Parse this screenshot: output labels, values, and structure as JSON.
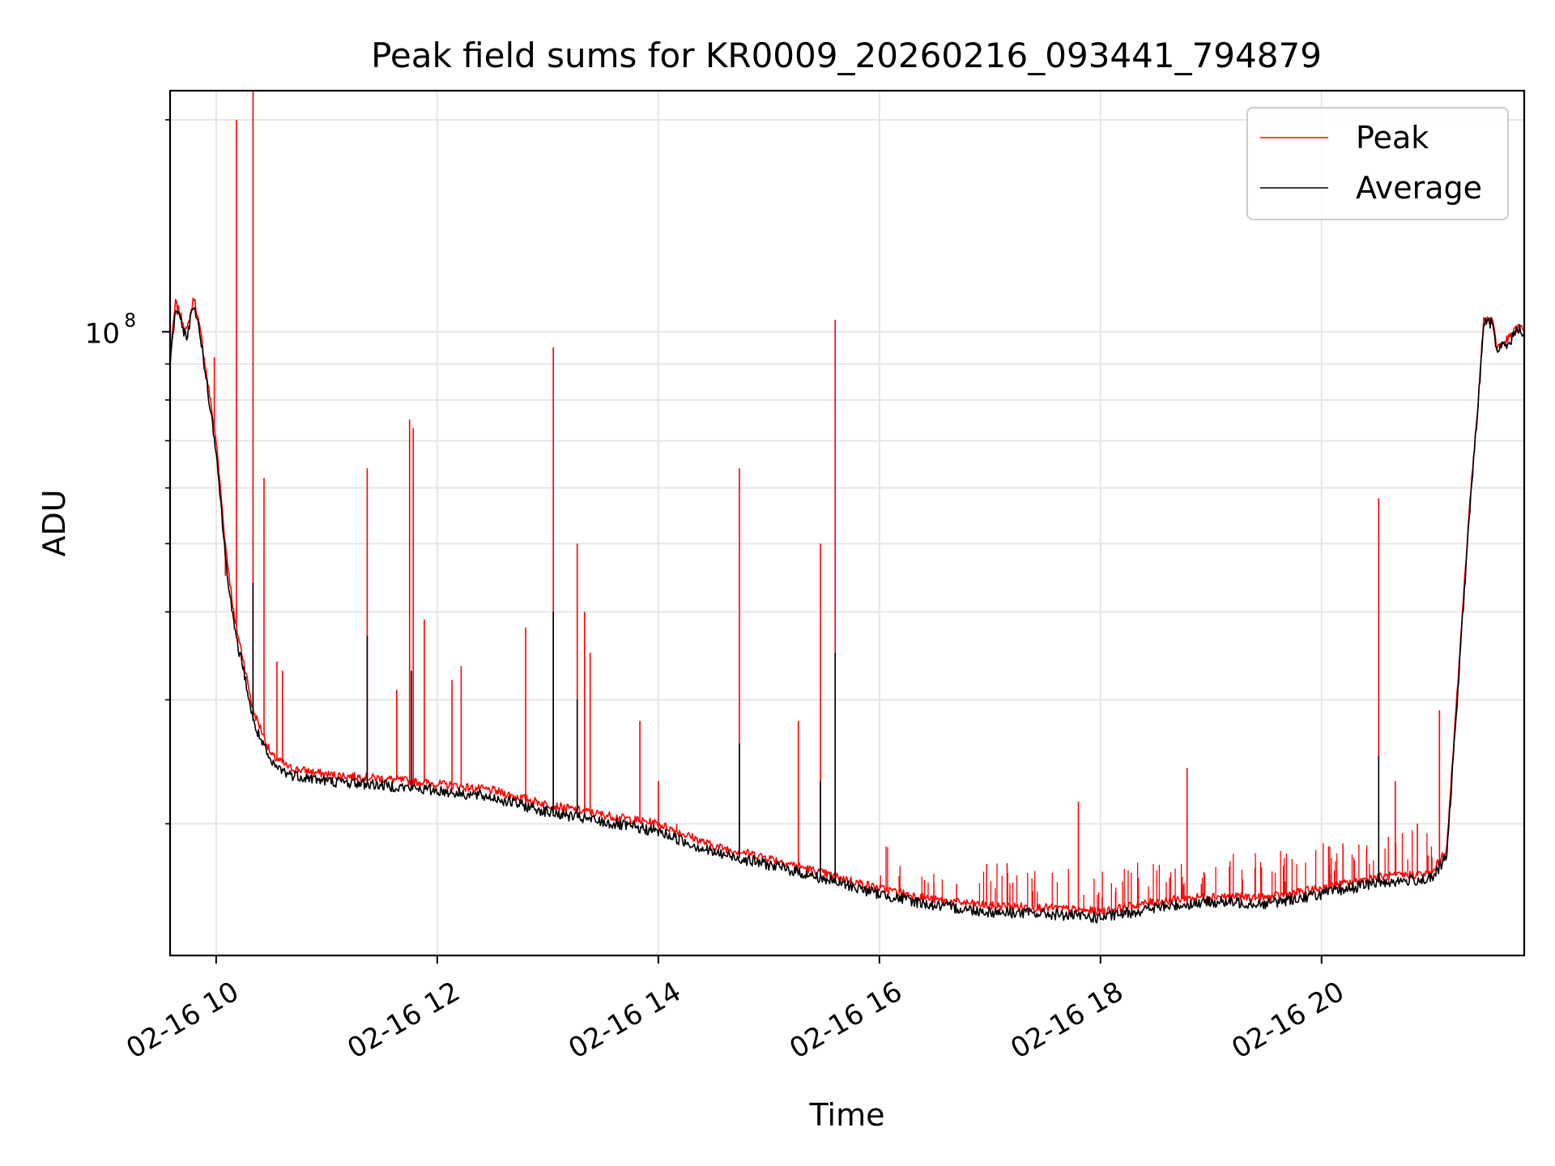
{
  "chart_data": {
    "type": "line",
    "title": "Peak field sums for KR0009_20260216_093441_794879",
    "xlabel": "Time",
    "ylabel": "ADU",
    "y_scale": "log",
    "xlim": [
      "2026-02-16T09:35",
      "2026-02-16T21:50"
    ],
    "ylim": [
      13000000,
      220000000
    ],
    "x_ticks": [
      {
        "t": "2026-02-16T10:00",
        "label": "02-16 10"
      },
      {
        "t": "2026-02-16T12:00",
        "label": "02-16 12"
      },
      {
        "t": "2026-02-16T14:00",
        "label": "02-16 14"
      },
      {
        "t": "2026-02-16T16:00",
        "label": "02-16 16"
      },
      {
        "t": "2026-02-16T18:00",
        "label": "02-16 18"
      },
      {
        "t": "2026-02-16T20:00",
        "label": "02-16 20"
      }
    ],
    "y_major_ticks": [
      {
        "value": 100000000,
        "base": "10",
        "exponent": "8"
      }
    ],
    "y_minor_ticks": [
      20000000,
      30000000,
      40000000,
      50000000,
      60000000,
      70000000,
      80000000,
      90000000,
      200000000
    ],
    "grid": true,
    "legend_position": "top-right",
    "series": [
      {
        "name": "Peak",
        "color": "#ff0000",
        "points": [
          [
            "2026-02-16T09:35",
            92000000
          ],
          [
            "2026-02-16T09:38",
            110000000
          ],
          [
            "2026-02-16T09:44",
            100000000
          ],
          [
            "2026-02-16T09:48",
            112000000
          ],
          [
            "2026-02-16T09:52",
            98000000
          ],
          [
            "2026-02-16T10:00",
            70000000
          ],
          [
            "2026-02-16T10:05",
            50000000
          ],
          [
            "2026-02-16T10:10",
            39000000
          ],
          [
            "2026-02-16T10:15",
            34000000
          ],
          [
            "2026-02-16T10:20",
            29000000
          ],
          [
            "2026-02-16T10:25",
            27000000
          ],
          [
            "2026-02-16T10:30",
            25000000
          ],
          [
            "2026-02-16T10:40",
            24000000
          ],
          [
            "2026-02-16T11:00",
            23500000
          ],
          [
            "2026-02-16T11:30",
            23200000
          ],
          [
            "2026-02-16T12:00",
            22800000
          ],
          [
            "2026-02-16T12:30",
            22300000
          ],
          [
            "2026-02-16T13:00",
            21300000
          ],
          [
            "2026-02-16T13:30",
            20600000
          ],
          [
            "2026-02-16T14:00",
            20000000
          ],
          [
            "2026-02-16T14:30",
            18600000
          ],
          [
            "2026-02-16T15:00",
            17900000
          ],
          [
            "2026-02-16T15:30",
            17000000
          ],
          [
            "2026-02-16T16:00",
            16200000
          ],
          [
            "2026-02-16T16:30",
            15600000
          ],
          [
            "2026-02-16T17:00",
            15300000
          ],
          [
            "2026-02-16T17:30",
            15200000
          ],
          [
            "2026-02-16T18:00",
            15000000
          ],
          [
            "2026-02-16T18:30",
            15500000
          ],
          [
            "2026-02-16T19:00",
            15800000
          ],
          [
            "2026-02-16T19:30",
            15700000
          ],
          [
            "2026-02-16T20:00",
            16200000
          ],
          [
            "2026-02-16T20:30",
            16800000
          ],
          [
            "2026-02-16T21:00",
            17000000
          ],
          [
            "2026-02-16T21:08",
            18500000
          ],
          [
            "2026-02-16T21:15",
            35000000
          ],
          [
            "2026-02-16T21:20",
            55000000
          ],
          [
            "2026-02-16T21:25",
            80000000
          ],
          [
            "2026-02-16T21:28",
            104000000
          ],
          [
            "2026-02-16T21:33",
            104000000
          ],
          [
            "2026-02-16T21:35",
            95000000
          ],
          [
            "2026-02-16T21:42",
            98000000
          ],
          [
            "2026-02-16T21:47",
            102000000
          ],
          [
            "2026-02-16T21:50",
            100000000
          ]
        ],
        "spikes": [
          [
            "2026-02-16T09:59",
            92000000
          ],
          [
            "2026-02-16T10:11",
            200000000
          ],
          [
            "2026-02-16T10:20",
            220000000
          ],
          [
            "2026-02-16T10:26",
            62000000
          ],
          [
            "2026-02-16T10:05",
            45000000
          ],
          [
            "2026-02-16T10:33",
            34000000
          ],
          [
            "2026-02-16T10:36",
            33000000
          ],
          [
            "2026-02-16T11:22",
            64000000
          ],
          [
            "2026-02-16T11:38",
            31000000
          ],
          [
            "2026-02-16T11:45",
            75000000
          ],
          [
            "2026-02-16T11:47",
            73000000
          ],
          [
            "2026-02-16T11:53",
            39000000
          ],
          [
            "2026-02-16T12:08",
            32000000
          ],
          [
            "2026-02-16T12:13",
            33500000
          ],
          [
            "2026-02-16T12:48",
            38000000
          ],
          [
            "2026-02-16T13:03",
            95000000
          ],
          [
            "2026-02-16T13:16",
            50000000
          ],
          [
            "2026-02-16T13:20",
            40000000
          ],
          [
            "2026-02-16T13:23",
            35000000
          ],
          [
            "2026-02-16T13:50",
            28000000
          ],
          [
            "2026-02-16T14:00",
            23000000
          ],
          [
            "2026-02-16T14:10",
            20000000
          ],
          [
            "2026-02-16T14:44",
            64000000
          ],
          [
            "2026-02-16T15:16",
            28000000
          ],
          [
            "2026-02-16T15:28",
            50000000
          ],
          [
            "2026-02-16T15:36",
            104000000
          ],
          [
            "2026-02-16T17:48",
            21500000
          ],
          [
            "2026-02-16T18:47",
            24000000
          ],
          [
            "2026-02-16T20:31",
            58000000
          ],
          [
            "2026-02-16T20:40",
            23000000
          ],
          [
            "2026-02-16T20:52",
            20000000
          ],
          [
            "2026-02-16T21:04",
            29000000
          ]
        ]
      },
      {
        "name": "Average",
        "color": "#000000",
        "points": [
          [
            "2026-02-16T09:35",
            90000000
          ],
          [
            "2026-02-16T09:38",
            108000000
          ],
          [
            "2026-02-16T09:44",
            98000000
          ],
          [
            "2026-02-16T09:48",
            110000000
          ],
          [
            "2026-02-16T09:52",
            96000000
          ],
          [
            "2026-02-16T10:00",
            68000000
          ],
          [
            "2026-02-16T10:05",
            48000000
          ],
          [
            "2026-02-16T10:10",
            37500000
          ],
          [
            "2026-02-16T10:15",
            33000000
          ],
          [
            "2026-02-16T10:20",
            28000000
          ],
          [
            "2026-02-16T10:25",
            26000000
          ],
          [
            "2026-02-16T10:30",
            24300000
          ],
          [
            "2026-02-16T10:40",
            23500000
          ],
          [
            "2026-02-16T11:00",
            23000000
          ],
          [
            "2026-02-16T11:30",
            22700000
          ],
          [
            "2026-02-16T12:00",
            22300000
          ],
          [
            "2026-02-16T12:30",
            21800000
          ],
          [
            "2026-02-16T13:00",
            20800000
          ],
          [
            "2026-02-16T13:30",
            20100000
          ],
          [
            "2026-02-16T14:00",
            19500000
          ],
          [
            "2026-02-16T14:30",
            18200000
          ],
          [
            "2026-02-16T15:00",
            17500000
          ],
          [
            "2026-02-16T15:30",
            16700000
          ],
          [
            "2026-02-16T16:00",
            15900000
          ],
          [
            "2026-02-16T16:30",
            15300000
          ],
          [
            "2026-02-16T17:00",
            15000000
          ],
          [
            "2026-02-16T17:30",
            14900000
          ],
          [
            "2026-02-16T18:00",
            14700000
          ],
          [
            "2026-02-16T18:30",
            15200000
          ],
          [
            "2026-02-16T19:00",
            15500000
          ],
          [
            "2026-02-16T19:30",
            15400000
          ],
          [
            "2026-02-16T20:00",
            15900000
          ],
          [
            "2026-02-16T20:30",
            16500000
          ],
          [
            "2026-02-16T21:00",
            16700000
          ],
          [
            "2026-02-16T21:08",
            18000000
          ],
          [
            "2026-02-16T21:15",
            34000000
          ],
          [
            "2026-02-16T21:20",
            54000000
          ],
          [
            "2026-02-16T21:25",
            79000000
          ],
          [
            "2026-02-16T21:28",
            103000000
          ],
          [
            "2026-02-16T21:33",
            103000000
          ],
          [
            "2026-02-16T21:35",
            94000000
          ],
          [
            "2026-02-16T21:42",
            97000000
          ],
          [
            "2026-02-16T21:47",
            101000000
          ],
          [
            "2026-02-16T21:50",
            99000000
          ]
        ],
        "spikes": [
          [
            "2026-02-16T10:20",
            44000000
          ],
          [
            "2026-02-16T11:22",
            37000000
          ],
          [
            "2026-02-16T11:46",
            33000000
          ],
          [
            "2026-02-16T13:03",
            40000000
          ],
          [
            "2026-02-16T13:16",
            30000000
          ],
          [
            "2026-02-16T14:44",
            26000000
          ],
          [
            "2026-02-16T15:28",
            23000000
          ],
          [
            "2026-02-16T15:36",
            35000000
          ],
          [
            "2026-02-16T20:31",
            25000000
          ]
        ]
      }
    ]
  }
}
